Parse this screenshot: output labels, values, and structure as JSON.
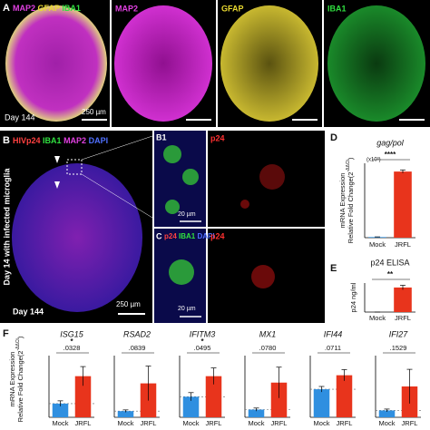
{
  "panel_a": {
    "label": "A",
    "merge_labels": [
      "MAP2",
      "GFAP",
      "IBA1"
    ],
    "channels": [
      "MAP2",
      "GFAP",
      "IBA1"
    ],
    "day": "Day 144",
    "scale": "250 µm"
  },
  "panel_b": {
    "label": "B",
    "channels": [
      "HIVp24",
      "IBA1",
      "MAP2",
      "DAPI"
    ],
    "side_title": "Day 14 with infected microglia",
    "day": "Day 144",
    "scale": "250 µm"
  },
  "panel_b1": {
    "label": "B1",
    "channel": "p24",
    "scale": "20 µm"
  },
  "panel_c": {
    "label": "C",
    "channels": [
      "p24",
      "IBA1",
      "DAPI"
    ],
    "channel": "p24",
    "scale": "20 µm"
  },
  "panel_d": {
    "label": "D"
  },
  "panel_e": {
    "label": "E"
  },
  "panel_f": {
    "label": "F",
    "ylabel": [
      "mRNA Expression",
      "Relative Fold Change(2",
      "-ΔΔCt",
      ")"
    ]
  },
  "chart_data": [
    {
      "type": "bar",
      "title": "gag/pol",
      "annotation": "****",
      "ylabel": [
        "mRNA Expression",
        "Relative Fold Change(2",
        "-ΔΔCt",
        ")"
      ],
      "y_unit": "(x10³)",
      "categories": [
        "Mock",
        "JRFL"
      ],
      "values": [
        0.3,
        32
      ],
      "errors": [
        0.1,
        0.8
      ],
      "colors": [
        "#2f8fe0",
        "#e8341c"
      ],
      "ylim": [
        0,
        36
      ]
    },
    {
      "type": "bar",
      "title": "p24 ELISA",
      "annotation": "**",
      "ylabel": [
        "p24 ng/ml"
      ],
      "categories": [
        "Mock",
        "JRFL"
      ],
      "values": [
        0,
        0.22
      ],
      "errors": [
        0,
        0.02
      ],
      "colors": [
        "#2f8fe0",
        "#e8341c"
      ],
      "ylim": [
        0,
        0.26
      ]
    },
    {
      "type": "bar",
      "title": "ISG15",
      "annotation": "*",
      "pvalue": ".0328",
      "categories": [
        "Mock",
        "JRFL"
      ],
      "values": [
        1,
        3
      ],
      "errors": [
        0.2,
        0.7
      ],
      "reference": 1,
      "colors": [
        "#2f8fe0",
        "#e8341c"
      ],
      "ylim": [
        0,
        4.5
      ]
    },
    {
      "type": "bar",
      "title": "RSAD2",
      "pvalue": ".0839",
      "categories": [
        "Mock",
        "JRFL"
      ],
      "values": [
        1,
        5.5
      ],
      "errors": [
        0.2,
        2.8
      ],
      "reference": 1,
      "colors": [
        "#2f8fe0",
        "#e8341c"
      ],
      "ylim": [
        0,
        10
      ]
    },
    {
      "type": "bar",
      "title": "IFITM3",
      "annotation": "*",
      "pvalue": ".0495",
      "categories": [
        "Mock",
        "JRFL"
      ],
      "values": [
        1,
        2
      ],
      "errors": [
        0.2,
        0.4
      ],
      "reference": 1,
      "colors": [
        "#2f8fe0",
        "#e8341c"
      ],
      "ylim": [
        0,
        3
      ]
    },
    {
      "type": "bar",
      "title": "MX1",
      "pvalue": ".0780",
      "categories": [
        "Mock",
        "JRFL"
      ],
      "values": [
        1,
        4.5
      ],
      "errors": [
        0.2,
        2
      ],
      "reference": 1,
      "colors": [
        "#2f8fe0",
        "#e8341c"
      ],
      "ylim": [
        0,
        8
      ]
    },
    {
      "type": "bar",
      "title": "IFI44",
      "pvalue": ".0711",
      "categories": [
        "Mock",
        "JRFL"
      ],
      "values": [
        1,
        1.5
      ],
      "errors": [
        0.1,
        0.2
      ],
      "reference": 1,
      "colors": [
        "#2f8fe0",
        "#e8341c"
      ],
      "ylim": [
        0,
        2.2
      ]
    },
    {
      "type": "bar",
      "title": "IFI27",
      "pvalue": ".1529",
      "categories": [
        "Mock",
        "JRFL"
      ],
      "values": [
        1,
        4.5
      ],
      "errors": [
        0.2,
        2.5
      ],
      "reference": 1,
      "colors": [
        "#2f8fe0",
        "#e8341c"
      ],
      "ylim": [
        0,
        9
      ]
    }
  ]
}
